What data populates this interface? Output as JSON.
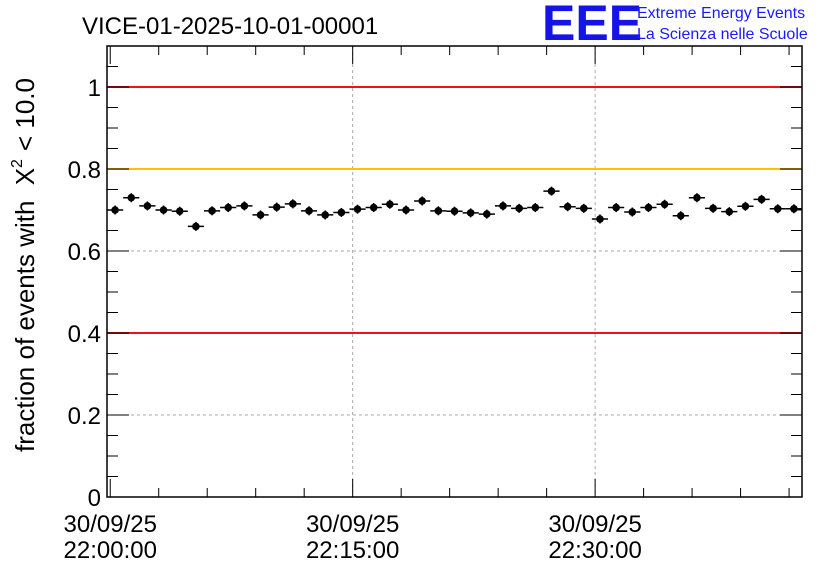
{
  "chart_data": {
    "type": "scatter",
    "title": "VICE-01-2025-10-01-00001",
    "ylabel": "fraction of events with",
    "ylabel_math": {
      "symbol": "X",
      "superscript": "2",
      "tail": "< 10.0"
    },
    "xlabel": "",
    "ylim": [
      0,
      1.1
    ],
    "xlim_minutes": [
      -0.2,
      42.8
    ],
    "grid": true,
    "x_ticks": [
      {
        "x_min": 0,
        "date": "30/09/25",
        "time": "22:00:00"
      },
      {
        "x_min": 15,
        "date": "30/09/25",
        "time": "22:15:00"
      },
      {
        "x_min": 30,
        "date": "30/09/25",
        "time": "22:30:00"
      }
    ],
    "y_ticks": [
      {
        "value": 0,
        "label": "0"
      },
      {
        "value": 0.2,
        "label": "0.2"
      },
      {
        "value": 0.4,
        "label": "0.4"
      },
      {
        "value": 0.6,
        "label": "0.6"
      },
      {
        "value": 0.8,
        "label": "0.8"
      },
      {
        "value": 1.0,
        "label": "1"
      }
    ],
    "reference_lines": [
      {
        "value": 1.0,
        "color": "#e8141c"
      },
      {
        "value": 0.8,
        "color": "#ffc000"
      },
      {
        "value": 0.4,
        "color": "#e8141c"
      }
    ],
    "series": [
      {
        "color": "#000000",
        "points": [
          {
            "x": 0.3,
            "y": 0.7
          },
          {
            "x": 1.3,
            "y": 0.73
          },
          {
            "x": 2.3,
            "y": 0.71
          },
          {
            "x": 3.3,
            "y": 0.7
          },
          {
            "x": 4.3,
            "y": 0.697
          },
          {
            "x": 5.3,
            "y": 0.66
          },
          {
            "x": 6.3,
            "y": 0.698
          },
          {
            "x": 7.3,
            "y": 0.706
          },
          {
            "x": 8.3,
            "y": 0.71
          },
          {
            "x": 9.3,
            "y": 0.688
          },
          {
            "x": 10.3,
            "y": 0.707
          },
          {
            "x": 11.3,
            "y": 0.715
          },
          {
            "x": 12.3,
            "y": 0.698
          },
          {
            "x": 13.3,
            "y": 0.688
          },
          {
            "x": 14.3,
            "y": 0.694
          },
          {
            "x": 15.3,
            "y": 0.702
          },
          {
            "x": 16.3,
            "y": 0.706
          },
          {
            "x": 17.3,
            "y": 0.714
          },
          {
            "x": 18.3,
            "y": 0.7
          },
          {
            "x": 19.3,
            "y": 0.722
          },
          {
            "x": 20.3,
            "y": 0.698
          },
          {
            "x": 21.3,
            "y": 0.697
          },
          {
            "x": 22.3,
            "y": 0.693
          },
          {
            "x": 23.3,
            "y": 0.69
          },
          {
            "x": 24.3,
            "y": 0.71
          },
          {
            "x": 25.3,
            "y": 0.704
          },
          {
            "x": 26.3,
            "y": 0.706
          },
          {
            "x": 27.3,
            "y": 0.746
          },
          {
            "x": 28.3,
            "y": 0.708
          },
          {
            "x": 29.3,
            "y": 0.704
          },
          {
            "x": 30.3,
            "y": 0.678
          },
          {
            "x": 31.3,
            "y": 0.706
          },
          {
            "x": 32.3,
            "y": 0.695
          },
          {
            "x": 33.3,
            "y": 0.706
          },
          {
            "x": 34.3,
            "y": 0.714
          },
          {
            "x": 35.3,
            "y": 0.686
          },
          {
            "x": 36.3,
            "y": 0.73
          },
          {
            "x": 37.3,
            "y": 0.704
          },
          {
            "x": 38.3,
            "y": 0.696
          },
          {
            "x": 39.3,
            "y": 0.709
          },
          {
            "x": 40.3,
            "y": 0.726
          },
          {
            "x": 41.3,
            "y": 0.703
          },
          {
            "x": 42.3,
            "y": 0.703
          }
        ],
        "y_error": 0.011,
        "x_halfwidth_min": 0.5
      }
    ]
  },
  "logo": {
    "mark": "EEE",
    "line1": "Extreme Energy Events",
    "line2": "La Scienza nelle Scuole",
    "color": "#1414e6"
  }
}
